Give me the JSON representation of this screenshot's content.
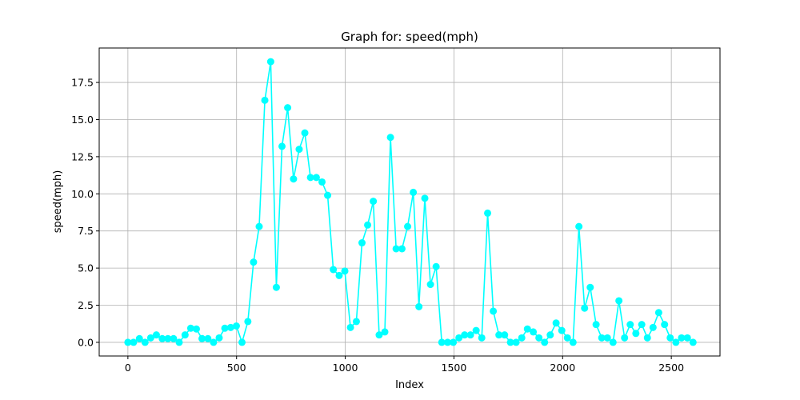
{
  "chart_data": {
    "type": "line",
    "title": "Graph for: speed(mph)",
    "xlabel": "Index",
    "ylabel": "speed(mph)",
    "color": "cyan",
    "grid": true,
    "x": [
      0,
      26,
      53,
      79,
      105,
      131,
      158,
      184,
      210,
      236,
      263,
      289,
      315,
      341,
      368,
      394,
      420,
      446,
      473,
      499,
      525,
      552,
      578,
      604,
      630,
      657,
      683,
      709,
      735,
      762,
      788,
      814,
      840,
      867,
      893,
      919,
      945,
      972,
      998,
      1024,
      1051,
      1077,
      1103,
      1129,
      1156,
      1182,
      1208,
      1234,
      1261,
      1287,
      1313,
      1339,
      1366,
      1392,
      1418,
      1444,
      1471,
      1497,
      1523,
      1549,
      1576,
      1602,
      1628,
      1655,
      1681,
      1707,
      1733,
      1760,
      1786,
      1812,
      1838,
      1865,
      1891,
      1917,
      1943,
      1970,
      1996,
      2022,
      2048,
      2075,
      2101,
      2127,
      2154,
      2180,
      2206,
      2232,
      2259,
      2285,
      2311,
      2337,
      2364,
      2390,
      2416,
      2442,
      2469,
      2495,
      2521,
      2547,
      2574,
      2600
    ],
    "values": [
      0,
      0,
      0.25,
      0,
      0.3,
      0.5,
      0.25,
      0.25,
      0.25,
      0,
      0.5,
      0.95,
      0.9,
      0.25,
      0.25,
      0,
      0.3,
      0.95,
      1.0,
      1.1,
      0,
      1.4,
      5.4,
      7.8,
      16.3,
      18.9,
      3.7,
      13.2,
      15.8,
      11.0,
      13.0,
      14.1,
      11.1,
      11.1,
      10.8,
      9.9,
      4.9,
      4.5,
      4.8,
      1.0,
      1.4,
      6.7,
      7.9,
      9.5,
      0.5,
      0.7,
      13.8,
      6.3,
      6.3,
      7.8,
      10.1,
      2.4,
      9.7,
      3.9,
      5.1,
      0,
      0,
      0,
      0.3,
      0.5,
      0.5,
      0.8,
      0.3,
      8.7,
      2.1,
      0.5,
      0.5,
      0,
      0,
      0.3,
      0.9,
      0.7,
      0.3,
      0,
      0.5,
      1.3,
      0.8,
      0.3,
      0,
      7.8,
      2.3,
      3.7,
      1.2,
      0.3,
      0.3,
      0,
      2.8,
      0.3,
      1.2,
      0.6,
      1.2,
      0.3,
      1.0,
      2.0,
      1.2,
      0.3,
      0,
      0.3,
      0.3,
      0
    ],
    "xlim": [
      -132,
      2724
    ],
    "ylim": [
      -0.92,
      19.82
    ],
    "xticks": [
      0,
      500,
      1000,
      1500,
      2000,
      2500
    ],
    "yticks": [
      {
        "value": 0,
        "label": "0.0"
      },
      2.5,
      {
        "value": 5,
        "label": "5.0"
      },
      7.5,
      {
        "value": 10,
        "label": "10.0"
      },
      12.5,
      {
        "value": 15,
        "label": "15.0"
      },
      17.5
    ]
  }
}
